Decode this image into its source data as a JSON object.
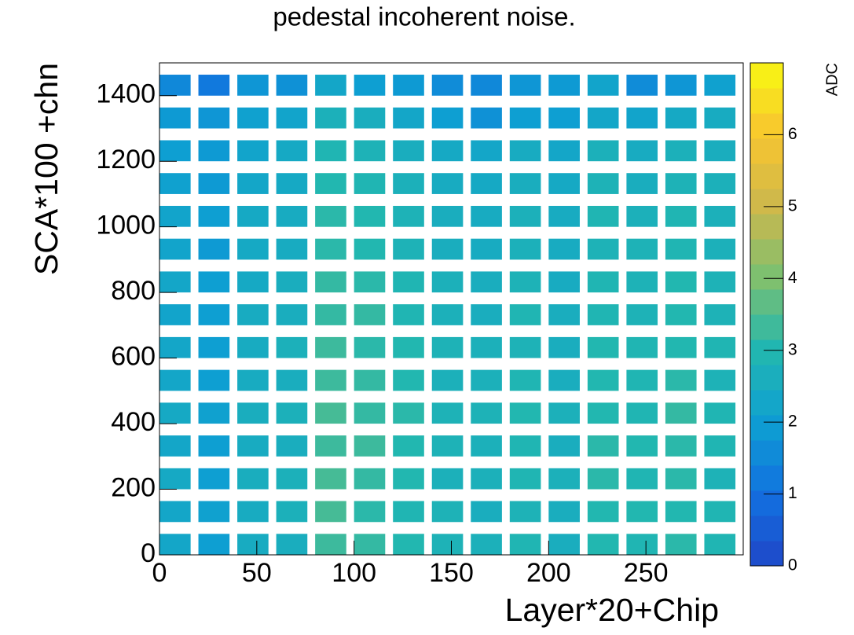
{
  "chart_data": {
    "type": "heatmap",
    "title": "pedestal incoherent noise.",
    "x_label": "Layer*20+Chip",
    "y_label": "SCA*100 +chn",
    "z_label": "ADC",
    "x": [
      8,
      28,
      48,
      68,
      88,
      108,
      128,
      148,
      168,
      188,
      208,
      228,
      248,
      268,
      288
    ],
    "y": [
      32,
      132,
      232,
      332,
      432,
      532,
      632,
      732,
      832,
      932,
      1032,
      1132,
      1232,
      1332,
      1432
    ],
    "z": [
      [
        2.3,
        2.0,
        2.5,
        2.6,
        3.3,
        3.2,
        3.0,
        2.8,
        2.7,
        2.9,
        2.6,
        3.0,
        2.9,
        3.1,
        2.9
      ],
      [
        2.3,
        2.1,
        2.5,
        2.7,
        3.4,
        3.1,
        2.9,
        2.8,
        2.6,
        2.8,
        2.6,
        3.0,
        3.0,
        3.0,
        2.9
      ],
      [
        2.4,
        2.0,
        2.6,
        2.7,
        3.4,
        3.2,
        3.0,
        2.7,
        2.7,
        2.9,
        2.7,
        3.1,
        2.9,
        3.1,
        2.8
      ],
      [
        2.3,
        2.0,
        2.5,
        2.6,
        3.3,
        3.3,
        3.0,
        2.8,
        2.7,
        2.9,
        2.6,
        3.1,
        3.0,
        3.1,
        2.9
      ],
      [
        2.4,
        2.1,
        2.6,
        2.7,
        3.4,
        3.2,
        3.1,
        2.8,
        2.8,
        3.0,
        2.7,
        3.0,
        2.9,
        3.2,
        2.9
      ],
      [
        2.3,
        2.0,
        2.5,
        2.6,
        3.3,
        3.2,
        3.0,
        2.7,
        2.7,
        2.9,
        2.6,
        3.0,
        2.9,
        3.1,
        2.8
      ],
      [
        2.3,
        2.0,
        2.5,
        2.7,
        3.3,
        3.1,
        3.0,
        2.8,
        2.7,
        2.8,
        2.6,
        3.0,
        2.9,
        3.0,
        2.9
      ],
      [
        2.2,
        2.0,
        2.5,
        2.6,
        3.2,
        3.2,
        2.9,
        2.7,
        2.6,
        2.9,
        2.6,
        2.9,
        2.8,
        3.0,
        2.8
      ],
      [
        2.3,
        2.0,
        2.4,
        2.6,
        3.2,
        3.1,
        2.9,
        2.7,
        2.6,
        2.8,
        2.5,
        2.9,
        2.8,
        3.0,
        2.8
      ],
      [
        2.2,
        1.9,
        2.4,
        2.5,
        3.1,
        3.0,
        2.8,
        2.6,
        2.5,
        2.7,
        2.5,
        2.8,
        2.8,
        2.9,
        2.7
      ],
      [
        2.2,
        2.0,
        2.4,
        2.5,
        3.1,
        3.0,
        2.8,
        2.6,
        2.5,
        2.7,
        2.5,
        2.9,
        2.7,
        2.9,
        2.7
      ],
      [
        2.1,
        1.9,
        2.3,
        2.4,
        3.0,
        2.9,
        2.7,
        2.5,
        2.4,
        2.6,
        2.4,
        2.8,
        2.6,
        2.8,
        2.7
      ],
      [
        2.0,
        1.9,
        2.2,
        2.4,
        2.9,
        2.8,
        2.6,
        2.4,
        2.3,
        2.5,
        2.3,
        2.7,
        2.5,
        2.7,
        2.6
      ],
      [
        1.9,
        1.8,
        2.1,
        2.2,
        2.7,
        2.6,
        2.3,
        2.0,
        1.7,
        2.0,
        2.0,
        2.3,
        2.2,
        2.4,
        2.5
      ],
      [
        1.5,
        1.2,
        1.8,
        1.7,
        2.3,
        2.0,
        1.9,
        1.6,
        1.5,
        1.8,
        1.9,
        2.2,
        1.6,
        1.8,
        2.1
      ]
    ],
    "xlim": [
      0,
      300
    ],
    "xticks": [
      0,
      50,
      100,
      150,
      200,
      250
    ],
    "ylim": [
      0,
      1500
    ],
    "yticks": [
      0,
      200,
      400,
      600,
      800,
      1000,
      1200,
      1400
    ],
    "zlim": [
      0,
      7
    ],
    "zticks": [
      0,
      1,
      2,
      3,
      4,
      5,
      6
    ],
    "colorscale": [
      "#1f47c8",
      "#1270e0",
      "#0e9fd2",
      "#22b7b0",
      "#7cc070",
      "#cdb84c",
      "#f8c530",
      "#f8f812"
    ]
  }
}
